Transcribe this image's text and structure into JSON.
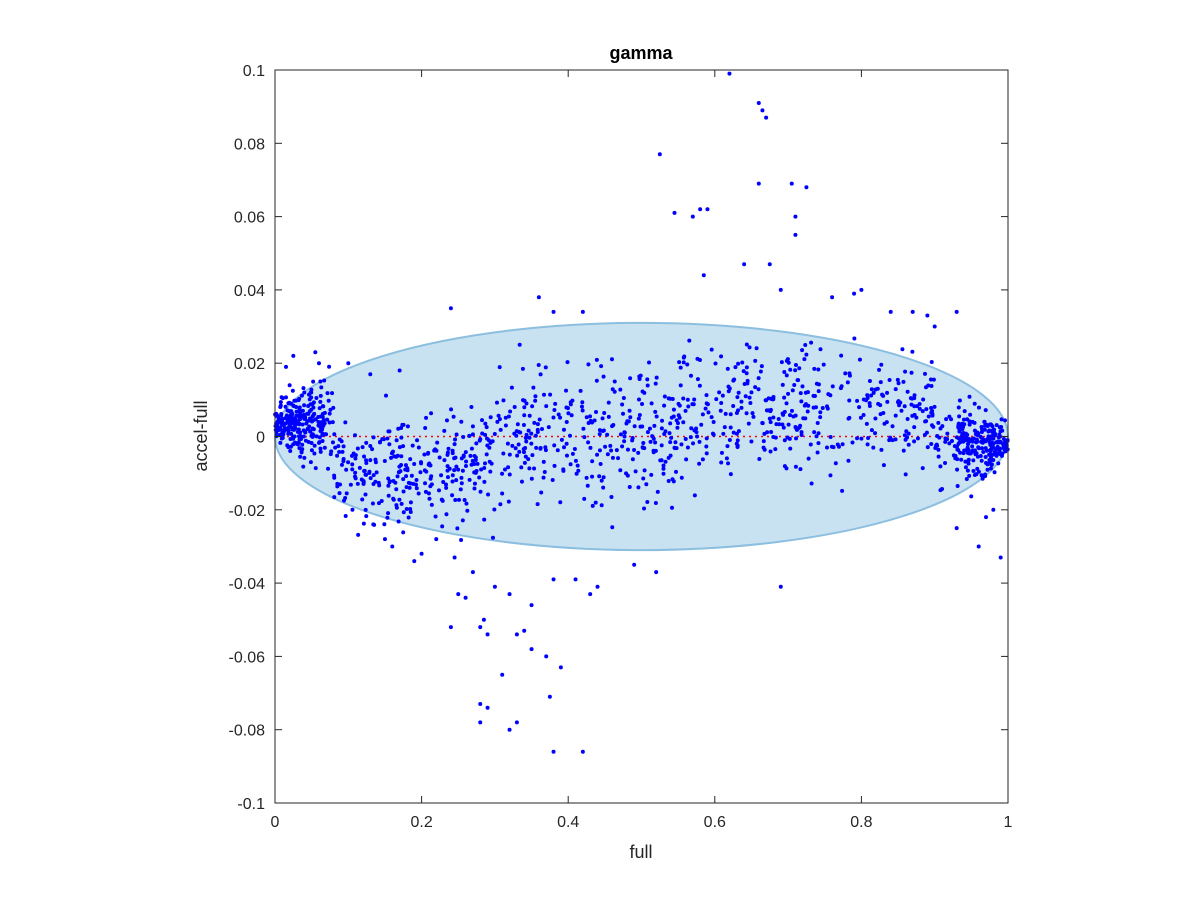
{
  "chart_data": {
    "type": "scatter",
    "title": "gamma",
    "xlabel": "full",
    "ylabel": "accel-full",
    "xlim": [
      0,
      1
    ],
    "ylim": [
      -0.1,
      0.1
    ],
    "x_ticks": [
      "0",
      "0.2",
      "0.4",
      "0.6",
      "0.8",
      "1"
    ],
    "y_ticks": [
      "-0.1",
      "-0.08",
      "-0.06",
      "-0.04",
      "-0.02",
      "0",
      "0.02",
      "0.04",
      "0.06",
      "0.08",
      "0.1"
    ],
    "grid": false,
    "legend": "none",
    "reference_line": {
      "y": 0,
      "style": "dotted",
      "color": "#ff0000"
    },
    "ellipse": {
      "center_x": 0.5,
      "center_y": 0,
      "half_width_x": 0.5,
      "half_height_y": 0.031,
      "fill": "#c9e2f2",
      "stroke": "#8cbfdf"
    },
    "series": [
      {
        "color": "#0000ff",
        "points": [
          [
            0.62,
            0.099
          ],
          [
            0.66,
            0.091
          ],
          [
            0.665,
            0.089
          ],
          [
            0.67,
            0.087
          ],
          [
            0.525,
            0.077
          ],
          [
            0.66,
            0.069
          ],
          [
            0.705,
            0.069
          ],
          [
            0.725,
            0.068
          ],
          [
            0.545,
            0.061
          ],
          [
            0.58,
            0.062
          ],
          [
            0.59,
            0.062
          ],
          [
            0.57,
            0.06
          ],
          [
            0.71,
            0.06
          ],
          [
            0.71,
            0.055
          ],
          [
            0.64,
            0.047
          ],
          [
            0.675,
            0.047
          ],
          [
            0.585,
            0.044
          ],
          [
            0.69,
            0.04
          ],
          [
            0.24,
            0.035
          ],
          [
            0.36,
            0.038
          ],
          [
            0.38,
            0.034
          ],
          [
            0.42,
            0.034
          ],
          [
            0.8,
            0.04
          ],
          [
            0.79,
            0.039
          ],
          [
            0.76,
            0.038
          ],
          [
            0.84,
            0.034
          ],
          [
            0.87,
            0.034
          ],
          [
            0.93,
            0.034
          ],
          [
            0.89,
            0.033
          ],
          [
            0.9,
            0.03
          ],
          [
            0.015,
            0.019
          ],
          [
            0.025,
            0.022
          ],
          [
            0.055,
            0.023
          ],
          [
            0.06,
            0.02
          ],
          [
            0.1,
            0.02
          ],
          [
            0.13,
            0.017
          ],
          [
            0.17,
            0.018
          ],
          [
            0.02,
            0.014
          ],
          [
            0.04,
            0.012
          ],
          [
            0.28,
            -0.052
          ],
          [
            0.285,
            -0.05
          ],
          [
            0.29,
            -0.054
          ],
          [
            0.33,
            -0.054
          ],
          [
            0.34,
            -0.053
          ],
          [
            0.35,
            -0.058
          ],
          [
            0.37,
            -0.06
          ],
          [
            0.39,
            -0.063
          ],
          [
            0.28,
            -0.073
          ],
          [
            0.29,
            -0.074
          ],
          [
            0.28,
            -0.078
          ],
          [
            0.32,
            -0.08
          ],
          [
            0.33,
            -0.078
          ],
          [
            0.31,
            -0.065
          ],
          [
            0.375,
            -0.071
          ],
          [
            0.38,
            -0.086
          ],
          [
            0.42,
            -0.086
          ],
          [
            0.24,
            -0.052
          ],
          [
            0.25,
            -0.043
          ],
          [
            0.26,
            -0.044
          ],
          [
            0.27,
            -0.037
          ],
          [
            0.245,
            -0.033
          ],
          [
            0.19,
            -0.034
          ],
          [
            0.2,
            -0.032
          ],
          [
            0.22,
            -0.028
          ],
          [
            0.15,
            -0.028
          ],
          [
            0.16,
            -0.03
          ],
          [
            0.43,
            -0.043
          ],
          [
            0.44,
            -0.041
          ],
          [
            0.38,
            -0.039
          ],
          [
            0.41,
            -0.039
          ],
          [
            0.52,
            -0.037
          ],
          [
            0.49,
            -0.035
          ],
          [
            0.69,
            -0.041
          ],
          [
            0.99,
            -0.033
          ],
          [
            0.96,
            -0.03
          ],
          [
            0.97,
            -0.022
          ],
          [
            0.98,
            -0.02
          ],
          [
            0.93,
            -0.025
          ],
          [
            0.35,
            -0.046
          ],
          [
            0.32,
            -0.043
          ],
          [
            0.3,
            -0.041
          ]
        ]
      }
    ]
  }
}
